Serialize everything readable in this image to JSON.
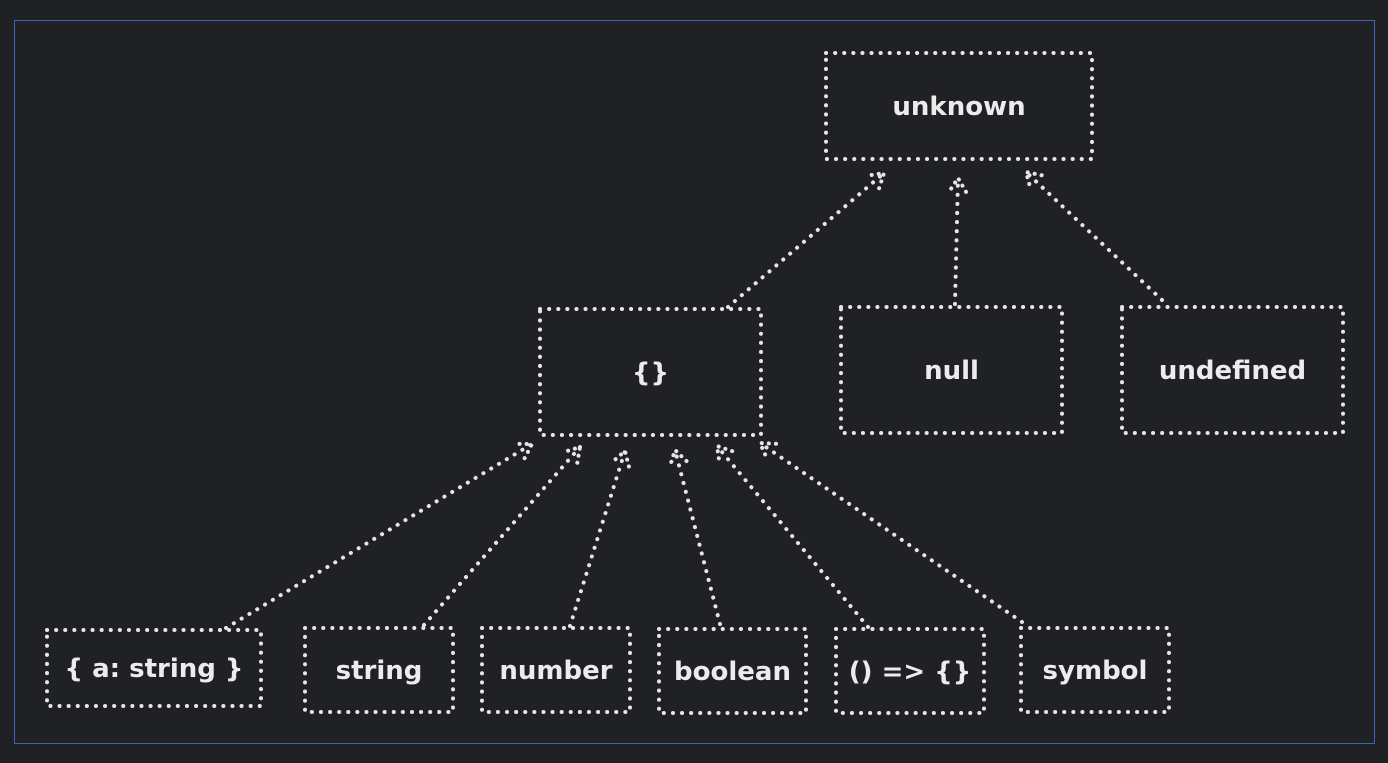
{
  "diagram": {
    "nodes": [
      {
        "id": "unknown",
        "label": "unknown"
      },
      {
        "id": "object",
        "label": "{}"
      },
      {
        "id": "null",
        "label": "null"
      },
      {
        "id": "undefined",
        "label": "undefined"
      },
      {
        "id": "obj-literal",
        "label": "{ a: string }"
      },
      {
        "id": "string",
        "label": "string"
      },
      {
        "id": "number",
        "label": "number"
      },
      {
        "id": "boolean",
        "label": "boolean"
      },
      {
        "id": "function",
        "label": "() => {}"
      },
      {
        "id": "symbol",
        "label": "symbol"
      }
    ],
    "edges": [
      {
        "from": "object",
        "to": "unknown"
      },
      {
        "from": "null",
        "to": "unknown"
      },
      {
        "from": "undefined",
        "to": "unknown"
      },
      {
        "from": "obj-literal",
        "to": "object"
      },
      {
        "from": "string",
        "to": "object"
      },
      {
        "from": "number",
        "to": "object"
      },
      {
        "from": "boolean",
        "to": "object"
      },
      {
        "from": "function",
        "to": "object"
      },
      {
        "from": "symbol",
        "to": "object"
      }
    ]
  }
}
